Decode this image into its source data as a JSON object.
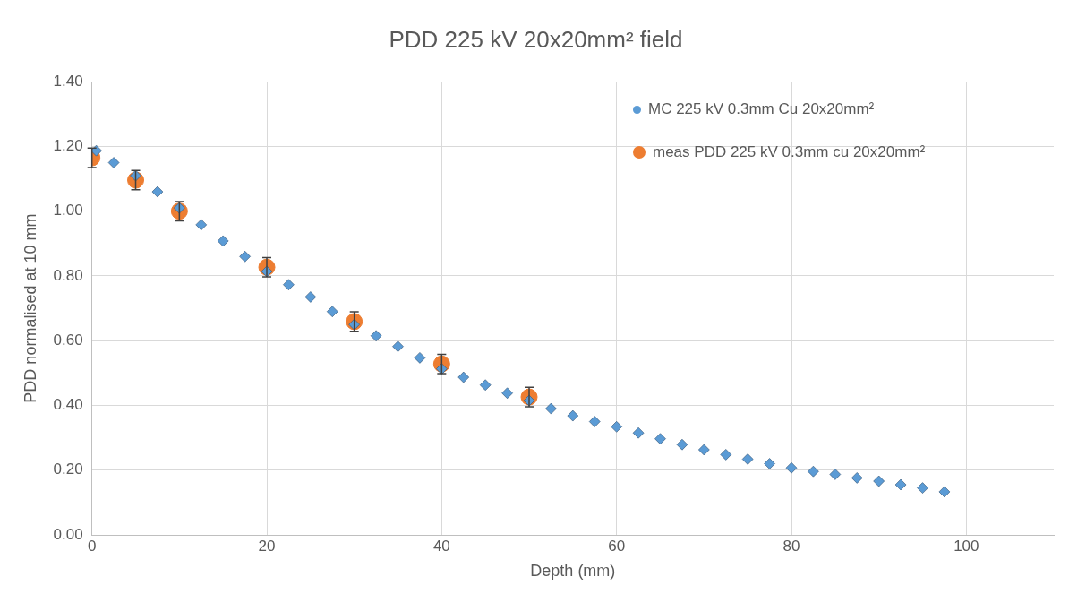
{
  "chart_data": {
    "type": "scatter",
    "title": "PDD 225 kV 20x20mm² field",
    "xlabel": "Depth (mm)",
    "ylabel": "PDD normalised at 10 mm",
    "xlim": [
      0,
      110
    ],
    "xticks": [
      0,
      20,
      40,
      60,
      80,
      100
    ],
    "ylim": [
      0,
      1.4
    ],
    "yticks": [
      {
        "value": 0,
        "label": "0.00"
      },
      {
        "value": 0.2,
        "label": "0.20"
      },
      {
        "value": 0.4,
        "label": "0.40"
      },
      {
        "value": 0.6,
        "label": "0.60"
      },
      {
        "value": 0.8,
        "label": "0.80"
      },
      {
        "value": 1.0,
        "label": "1.00"
      },
      {
        "value": 1.2,
        "label": "1.20"
      },
      {
        "value": 1.4,
        "label": "1.40"
      }
    ],
    "grid": true,
    "legend": "top right",
    "series": [
      {
        "name": "MC 225 kV 0.3mm Cu 20x20mm²",
        "color": "#5b9bd5",
        "marker": "diamond",
        "x": [
          0.5,
          2.5,
          5,
          7.5,
          10,
          12.5,
          15,
          17.5,
          20,
          22.5,
          25,
          27.5,
          30,
          32.5,
          35,
          37.5,
          40,
          42.5,
          45,
          47.5,
          50,
          52.5,
          55,
          57.5,
          60,
          62.5,
          65,
          67.5,
          70,
          72.5,
          75,
          77.5,
          80,
          82.5,
          85,
          87.5,
          90,
          92.5,
          95,
          97.5
        ],
        "values": [
          1.187,
          1.15,
          1.11,
          1.06,
          1.01,
          0.958,
          0.908,
          0.86,
          0.814,
          0.773,
          0.735,
          0.69,
          0.65,
          0.615,
          0.582,
          0.547,
          0.513,
          0.487,
          0.463,
          0.438,
          0.415,
          0.39,
          0.368,
          0.35,
          0.334,
          0.315,
          0.297,
          0.279,
          0.263,
          0.248,
          0.234,
          0.22,
          0.207,
          0.196,
          0.187,
          0.176,
          0.166,
          0.155,
          0.145,
          0.133
        ]
      },
      {
        "name": "meas PDD 225 kV 0.3mm cu 20x20mm²",
        "color": "#ed7d31",
        "marker": "circle",
        "x": [
          0,
          5,
          10,
          20,
          30,
          40,
          50
        ],
        "values": [
          1.165,
          1.096,
          1.0,
          0.827,
          0.659,
          0.528,
          0.426
        ],
        "errors": [
          0.03,
          0.03,
          0.03,
          0.03,
          0.03,
          0.03,
          0.03
        ]
      }
    ]
  }
}
